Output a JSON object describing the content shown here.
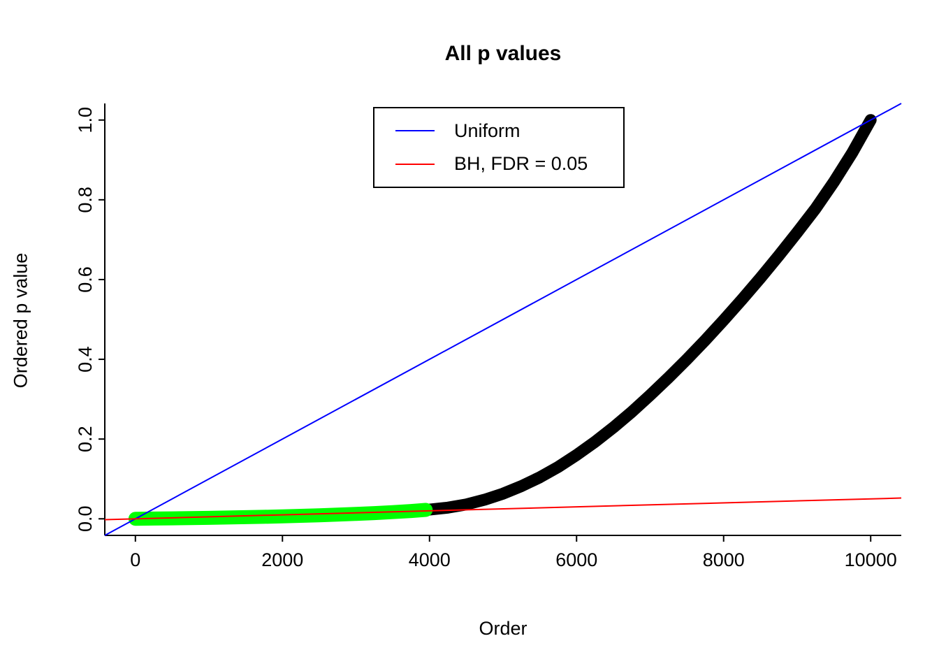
{
  "chart_data": {
    "type": "scatter",
    "title": "All p values",
    "xlabel": "Order",
    "ylabel": "Ordered p value",
    "xlim": [
      -416,
      10416
    ],
    "ylim": [
      -0.0416,
      1.0416
    ],
    "grid": false,
    "x_ticks": [
      {
        "value": 0,
        "label": "0"
      },
      {
        "value": 2000,
        "label": "2000"
      },
      {
        "value": 4000,
        "label": "4000"
      },
      {
        "value": 6000,
        "label": "6000"
      },
      {
        "value": 8000,
        "label": "8000"
      },
      {
        "value": 10000,
        "label": "10000"
      }
    ],
    "y_ticks": [
      {
        "value": 0.0,
        "label": "0.0"
      },
      {
        "value": 0.2,
        "label": "0.2"
      },
      {
        "value": 0.4,
        "label": "0.4"
      },
      {
        "value": 0.6,
        "label": "0.6"
      },
      {
        "value": 0.8,
        "label": "0.8"
      },
      {
        "value": 1.0,
        "label": "1.0"
      }
    ],
    "legend": {
      "position": "top-center",
      "entries": [
        {
          "label": "Uniform",
          "color": "#0000ff"
        },
        {
          "label": "BH, FDR = 0.05",
          "color": "#ff0000"
        }
      ]
    },
    "reference_lines": [
      {
        "name": "uniform",
        "color": "#0000ff",
        "intercept": 0,
        "slope": 0.0001
      },
      {
        "name": "bh-threshold",
        "color": "#ff0000",
        "intercept": 0,
        "slope": 5e-06
      }
    ],
    "n_points": 10000,
    "series": [
      {
        "name": "ordered-p-values",
        "color": "#000000",
        "stroke_width": 17,
        "x": [
          1,
          250,
          500,
          750,
          1000,
          1250,
          1500,
          1750,
          2000,
          2250,
          2500,
          2750,
          3000,
          3250,
          3500,
          3750,
          4000,
          4250,
          4500,
          4750,
          5000,
          5250,
          5500,
          5750,
          6000,
          6250,
          6500,
          6750,
          7000,
          7250,
          7500,
          7750,
          8000,
          8250,
          8500,
          8750,
          9000,
          9250,
          9500,
          9750,
          10000
        ],
        "y": [
          0.0002,
          0.0006,
          0.0011,
          0.0017,
          0.0024,
          0.0032,
          0.0041,
          0.0051,
          0.0062,
          0.0075,
          0.0089,
          0.0105,
          0.0123,
          0.0144,
          0.0168,
          0.0196,
          0.023,
          0.028,
          0.036,
          0.048,
          0.063,
          0.082,
          0.104,
          0.13,
          0.16,
          0.193,
          0.229,
          0.268,
          0.31,
          0.354,
          0.4,
          0.448,
          0.498,
          0.55,
          0.604,
          0.66,
          0.718,
          0.778,
          0.845,
          0.918,
          1.0
        ]
      },
      {
        "name": "significant-p-values",
        "color": "#00ff00",
        "stroke_width": 20,
        "significant_count": 3948
      }
    ]
  }
}
